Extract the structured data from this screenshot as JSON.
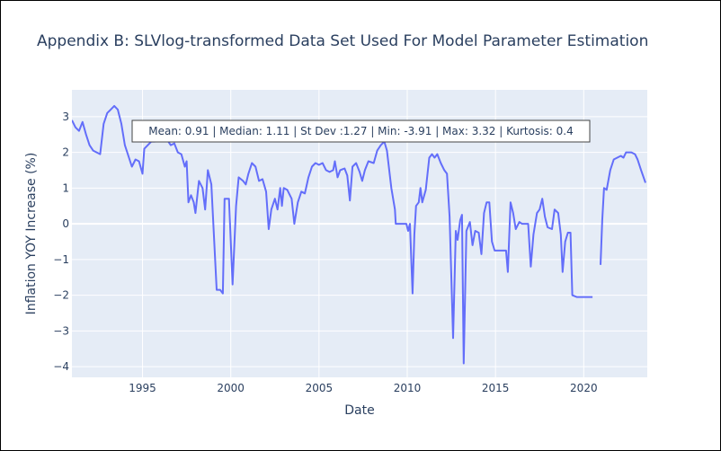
{
  "chart_data": {
    "type": "line",
    "title": "Appendix B: SLVlog-transformed Data Set Used For Model Parameter Estimation",
    "xlabel": "Date",
    "ylabel": "Inflation YOY Increase (%)",
    "xlim": [
      1991.0,
      2023.6
    ],
    "ylim": [
      -4.3,
      3.75
    ],
    "x_ticks": [
      1995,
      2000,
      2005,
      2010,
      2015,
      2020
    ],
    "x_tick_labels": [
      "1995",
      "2000",
      "2005",
      "2010",
      "2015",
      "2020"
    ],
    "y_ticks": [
      3,
      2,
      1,
      0,
      -1,
      -2,
      -3,
      -4
    ],
    "y_tick_labels": [
      "3",
      "2",
      "1",
      "0",
      "−1",
      "−2",
      "−3",
      "−4"
    ],
    "grid": true,
    "line_color": "#636efa",
    "plot_background": "#e5ecf6",
    "annotation": "Mean: 0.91 | Median: 1.11 | St Dev :1.27 | Min: -3.91 | Max: 3.32 | Kurtosis: 0.4",
    "series": [
      {
        "segments": [
          [
            [
              1991.0,
              2.9
            ],
            [
              1991.2,
              2.7
            ],
            [
              1991.4,
              2.6
            ],
            [
              1991.6,
              2.85
            ],
            [
              1991.8,
              2.5
            ],
            [
              1992.0,
              2.2
            ],
            [
              1992.2,
              2.05
            ],
            [
              1992.4,
              2.0
            ],
            [
              1992.6,
              1.95
            ],
            [
              1992.8,
              2.8
            ],
            [
              1993.0,
              3.1
            ],
            [
              1993.2,
              3.2
            ],
            [
              1993.4,
              3.3
            ],
            [
              1993.6,
              3.2
            ],
            [
              1993.8,
              2.8
            ],
            [
              1994.0,
              2.2
            ],
            [
              1994.2,
              1.9
            ],
            [
              1994.4,
              1.6
            ],
            [
              1994.6,
              1.8
            ],
            [
              1994.8,
              1.75
            ],
            [
              1995.0,
              1.4
            ],
            [
              1995.1,
              2.1
            ],
            [
              1995.3,
              2.2
            ],
            [
              1995.5,
              2.3
            ],
            [
              1995.7,
              2.3
            ],
            [
              1996.0,
              2.35
            ],
            [
              1996.2,
              2.35
            ],
            [
              1996.4,
              2.35
            ],
            [
              1996.6,
              2.2
            ],
            [
              1996.8,
              2.25
            ],
            [
              1997.0,
              2.0
            ],
            [
              1997.2,
              1.95
            ],
            [
              1997.4,
              1.6
            ],
            [
              1997.5,
              1.75
            ],
            [
              1997.6,
              0.6
            ],
            [
              1997.75,
              0.8
            ],
            [
              1997.9,
              0.6
            ],
            [
              1998.0,
              0.3
            ],
            [
              1998.2,
              1.2
            ],
            [
              1998.4,
              1.0
            ],
            [
              1998.55,
              0.4
            ],
            [
              1998.7,
              1.5
            ],
            [
              1998.9,
              1.1
            ],
            [
              1999.2,
              -1.85
            ],
            [
              1999.4,
              -1.85
            ],
            [
              1999.55,
              -1.95
            ],
            [
              1999.65,
              0.7
            ],
            [
              1999.9,
              0.7
            ],
            [
              2000.1,
              -1.7
            ],
            [
              2000.3,
              0.5
            ],
            [
              2000.45,
              1.3
            ],
            [
              2000.7,
              1.2
            ],
            [
              2000.85,
              1.1
            ],
            [
              2001.0,
              1.4
            ],
            [
              2001.2,
              1.7
            ],
            [
              2001.4,
              1.6
            ],
            [
              2001.6,
              1.2
            ],
            [
              2001.8,
              1.25
            ],
            [
              2002.0,
              0.9
            ],
            [
              2002.15,
              -0.15
            ],
            [
              2002.3,
              0.4
            ],
            [
              2002.5,
              0.7
            ],
            [
              2002.65,
              0.4
            ],
            [
              2002.8,
              1.0
            ],
            [
              2002.9,
              0.5
            ],
            [
              2003.0,
              1.0
            ],
            [
              2003.2,
              0.95
            ],
            [
              2003.45,
              0.7
            ],
            [
              2003.6,
              0.0
            ],
            [
              2003.8,
              0.6
            ],
            [
              2004.0,
              0.9
            ],
            [
              2004.2,
              0.85
            ],
            [
              2004.4,
              1.3
            ],
            [
              2004.6,
              1.6
            ],
            [
              2004.8,
              1.7
            ],
            [
              2005.0,
              1.65
            ],
            [
              2005.2,
              1.7
            ],
            [
              2005.4,
              1.5
            ],
            [
              2005.6,
              1.45
            ],
            [
              2005.8,
              1.5
            ],
            [
              2005.9,
              1.75
            ],
            [
              2006.05,
              1.3
            ],
            [
              2006.2,
              1.5
            ],
            [
              2006.45,
              1.55
            ],
            [
              2006.6,
              1.35
            ],
            [
              2006.75,
              0.65
            ],
            [
              2006.9,
              1.6
            ],
            [
              2007.1,
              1.7
            ],
            [
              2007.3,
              1.45
            ],
            [
              2007.45,
              1.2
            ],
            [
              2007.6,
              1.5
            ],
            [
              2007.8,
              1.75
            ],
            [
              2008.1,
              1.7
            ],
            [
              2008.3,
              2.05
            ],
            [
              2008.5,
              2.2
            ],
            [
              2008.7,
              2.3
            ],
            [
              2008.85,
              2.05
            ],
            [
              2009.1,
              1.0
            ],
            [
              2009.3,
              0.4
            ],
            [
              2009.35,
              0.0
            ],
            [
              2009.6,
              0.0
            ],
            [
              2009.8,
              0.0
            ],
            [
              2009.95,
              0.0
            ],
            [
              2010.05,
              -0.2
            ],
            [
              2010.15,
              0.0
            ],
            [
              2010.3,
              -1.95
            ],
            [
              2010.4,
              -0.3
            ],
            [
              2010.5,
              0.5
            ],
            [
              2010.65,
              0.6
            ],
            [
              2010.75,
              1.0
            ],
            [
              2010.85,
              0.6
            ],
            [
              2011.05,
              0.95
            ],
            [
              2011.25,
              1.85
            ],
            [
              2011.4,
              1.95
            ],
            [
              2011.55,
              1.85
            ],
            [
              2011.7,
              1.95
            ],
            [
              2011.9,
              1.7
            ],
            [
              2012.1,
              1.5
            ],
            [
              2012.25,
              1.4
            ],
            [
              2012.4,
              0.2
            ],
            [
              2012.6,
              -3.2
            ],
            [
              2012.75,
              -0.2
            ],
            [
              2012.85,
              -0.45
            ],
            [
              2013.0,
              0.1
            ],
            [
              2013.1,
              0.25
            ],
            [
              2013.2,
              -3.91
            ],
            [
              2013.35,
              -0.2
            ],
            [
              2013.55,
              0.05
            ],
            [
              2013.7,
              -0.6
            ],
            [
              2013.85,
              -0.2
            ],
            [
              2014.05,
              -0.25
            ],
            [
              2014.2,
              -0.85
            ],
            [
              2014.35,
              0.3
            ],
            [
              2014.5,
              0.6
            ],
            [
              2014.65,
              0.6
            ],
            [
              2014.8,
              -0.5
            ],
            [
              2014.95,
              -0.75
            ],
            [
              2015.2,
              -0.75
            ],
            [
              2015.6,
              -0.75
            ],
            [
              2015.7,
              -1.35
            ],
            [
              2015.85,
              0.6
            ],
            [
              2016.0,
              0.3
            ],
            [
              2016.15,
              -0.15
            ],
            [
              2016.35,
              0.05
            ],
            [
              2016.5,
              0.0
            ],
            [
              2016.85,
              0.0
            ],
            [
              2017.0,
              -1.2
            ],
            [
              2017.15,
              -0.3
            ],
            [
              2017.35,
              0.3
            ],
            [
              2017.5,
              0.4
            ],
            [
              2017.65,
              0.7
            ],
            [
              2017.8,
              0.2
            ],
            [
              2017.95,
              -0.1
            ],
            [
              2018.2,
              -0.15
            ],
            [
              2018.35,
              0.4
            ],
            [
              2018.55,
              0.3
            ],
            [
              2018.7,
              -0.3
            ],
            [
              2018.8,
              -1.35
            ],
            [
              2018.95,
              -0.5
            ],
            [
              2019.1,
              -0.25
            ],
            [
              2019.25,
              -0.25
            ],
            [
              2019.35,
              -2.0
            ],
            [
              2019.6,
              -2.05
            ],
            [
              2020.0,
              -2.05
            ],
            [
              2020.5,
              -2.05
            ]
          ],
          [
            [
              2020.95,
              -1.15
            ],
            [
              2021.05,
              0.1
            ],
            [
              2021.15,
              1.0
            ],
            [
              2021.3,
              0.95
            ],
            [
              2021.5,
              1.5
            ],
            [
              2021.7,
              1.8
            ],
            [
              2021.9,
              1.85
            ],
            [
              2022.1,
              1.9
            ],
            [
              2022.25,
              1.85
            ],
            [
              2022.4,
              2.0
            ],
            [
              2022.7,
              2.0
            ],
            [
              2022.9,
              1.95
            ],
            [
              2023.05,
              1.8
            ],
            [
              2023.25,
              1.5
            ],
            [
              2023.5,
              1.15
            ]
          ]
        ]
      }
    ]
  }
}
